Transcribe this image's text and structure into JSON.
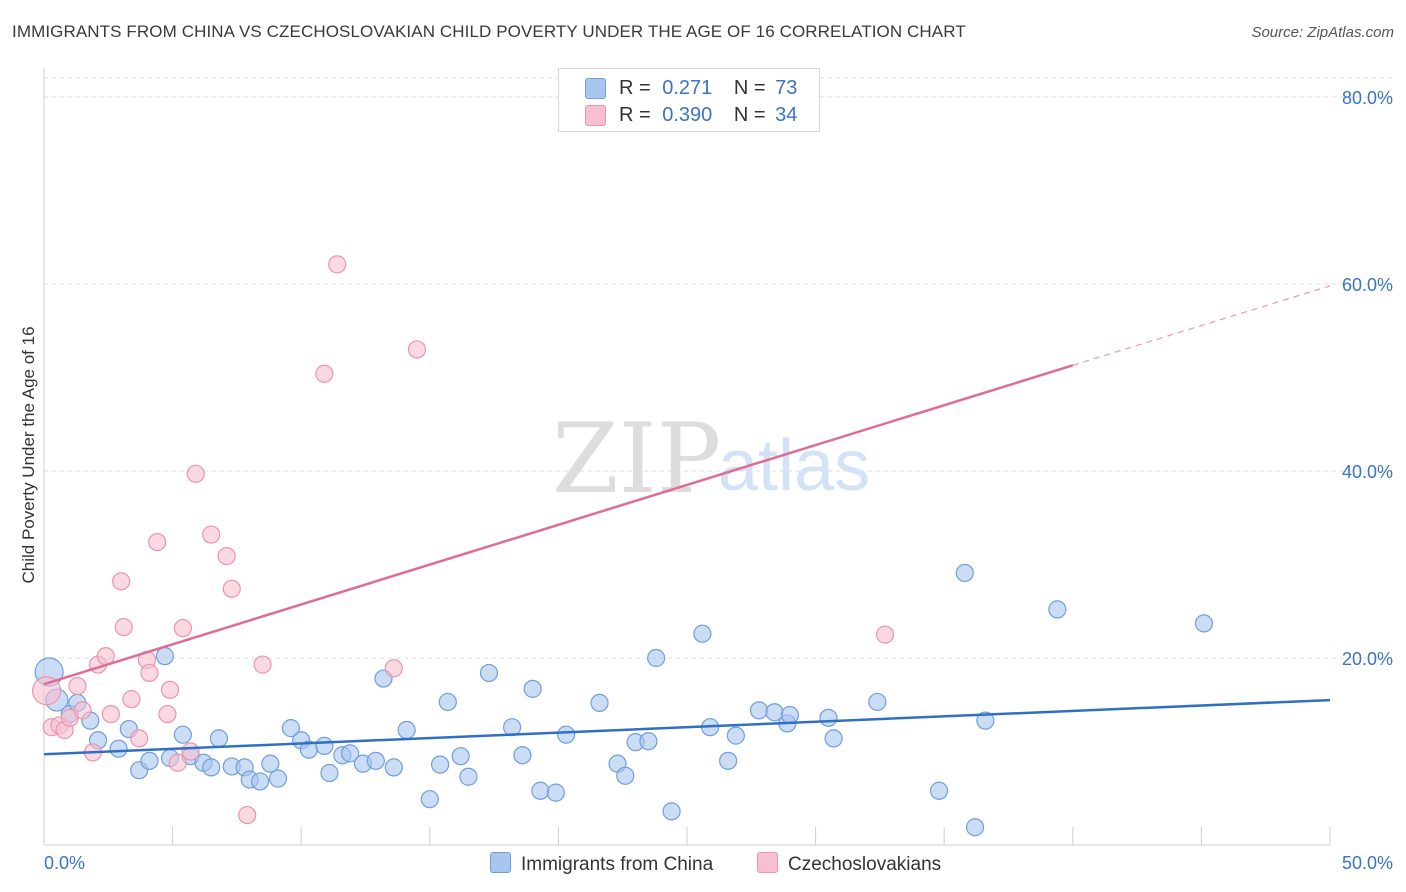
{
  "title": "IMMIGRANTS FROM CHINA VS CZECHOSLOVAKIAN CHILD POVERTY UNDER THE AGE OF 16 CORRELATION CHART",
  "source": "Source: ZipAtlas.com",
  "watermark": {
    "zip": "ZIP",
    "atlas": "atlas"
  },
  "legend": {
    "china": {
      "r_label": "R =",
      "r_value": "0.271",
      "n_label": "N =",
      "n_value": "73"
    },
    "czech": {
      "r_label": "R =",
      "r_value": "0.390",
      "n_label": "N =",
      "n_value": "34"
    }
  },
  "bottom_legend": {
    "china": "Immigrants from China",
    "czech": "Czechoslovakians"
  },
  "colors": {
    "china_fill": "#a9c6ee",
    "china_stroke": "#6f9fdc",
    "china_line": "#2f6fc6",
    "czech_fill": "#f7bfd0",
    "czech_stroke": "#ec93ae",
    "czech_line": "#e06c96",
    "tick_label": "#3a74c4",
    "grid": "#dcdcdc"
  },
  "chart_data": {
    "type": "scatter",
    "title": "IMMIGRANTS FROM CHINA VS CZECHOSLOVAKIAN CHILD POVERTY UNDER THE AGE OF 16 CORRELATION CHART",
    "xlabel": "",
    "ylabel": "Child Poverty Under the Age of 16",
    "xlim": [
      0,
      50
    ],
    "ylim": [
      0,
      80
    ],
    "x_tick_labels": [
      "0.0%",
      "50.0%"
    ],
    "y_ticks": [
      20,
      40,
      60,
      80
    ],
    "y_tick_labels": [
      "20.0%",
      "40.0%",
      "60.0%",
      "80.0%"
    ],
    "series": [
      {
        "name": "Immigrants from China",
        "r": 0.271,
        "n": 73,
        "trend": {
          "x0": 0,
          "y0": 9.7,
          "x1": 50,
          "y1": 15.5
        },
        "points": [
          {
            "x": 0.2,
            "y": 18.5,
            "s": 3
          },
          {
            "x": 0.5,
            "y": 15.5,
            "s": 2
          },
          {
            "x": 1.0,
            "y": 14.0
          },
          {
            "x": 1.3,
            "y": 15.2
          },
          {
            "x": 1.8,
            "y": 13.3
          },
          {
            "x": 2.1,
            "y": 11.2
          },
          {
            "x": 2.9,
            "y": 10.3
          },
          {
            "x": 3.3,
            "y": 12.4
          },
          {
            "x": 3.7,
            "y": 8.0
          },
          {
            "x": 4.1,
            "y": 9.0
          },
          {
            "x": 4.7,
            "y": 20.2
          },
          {
            "x": 4.9,
            "y": 9.3
          },
          {
            "x": 5.4,
            "y": 11.8
          },
          {
            "x": 5.7,
            "y": 9.5
          },
          {
            "x": 6.2,
            "y": 8.8
          },
          {
            "x": 6.5,
            "y": 8.3
          },
          {
            "x": 6.8,
            "y": 11.4
          },
          {
            "x": 7.3,
            "y": 8.4
          },
          {
            "x": 7.8,
            "y": 8.3
          },
          {
            "x": 8.0,
            "y": 7.0
          },
          {
            "x": 8.4,
            "y": 6.8
          },
          {
            "x": 8.8,
            "y": 8.7
          },
          {
            "x": 9.1,
            "y": 7.1
          },
          {
            "x": 9.6,
            "y": 12.5
          },
          {
            "x": 10.0,
            "y": 11.2
          },
          {
            "x": 10.3,
            "y": 10.2
          },
          {
            "x": 10.9,
            "y": 10.6
          },
          {
            "x": 11.1,
            "y": 7.7
          },
          {
            "x": 11.6,
            "y": 9.6
          },
          {
            "x": 11.9,
            "y": 9.8
          },
          {
            "x": 12.4,
            "y": 8.7
          },
          {
            "x": 12.9,
            "y": 9.0
          },
          {
            "x": 13.2,
            "y": 17.8
          },
          {
            "x": 13.6,
            "y": 8.3
          },
          {
            "x": 14.1,
            "y": 12.3
          },
          {
            "x": 15.0,
            "y": 4.9
          },
          {
            "x": 15.4,
            "y": 8.6
          },
          {
            "x": 15.7,
            "y": 15.3
          },
          {
            "x": 16.2,
            "y": 9.5
          },
          {
            "x": 16.5,
            "y": 7.3
          },
          {
            "x": 17.3,
            "y": 18.4
          },
          {
            "x": 18.2,
            "y": 12.6
          },
          {
            "x": 18.6,
            "y": 9.6
          },
          {
            "x": 19.3,
            "y": 5.8
          },
          {
            "x": 19.0,
            "y": 16.7
          },
          {
            "x": 19.9,
            "y": 5.6
          },
          {
            "x": 20.3,
            "y": 11.8
          },
          {
            "x": 21.6,
            "y": 15.2
          },
          {
            "x": 22.3,
            "y": 8.7
          },
          {
            "x": 22.6,
            "y": 7.4
          },
          {
            "x": 23.0,
            "y": 11.0
          },
          {
            "x": 23.5,
            "y": 11.1
          },
          {
            "x": 23.8,
            "y": 20.0
          },
          {
            "x": 24.4,
            "y": 3.6
          },
          {
            "x": 25.6,
            "y": 22.6
          },
          {
            "x": 25.9,
            "y": 12.6
          },
          {
            "x": 26.6,
            "y": 9.0
          },
          {
            "x": 26.9,
            "y": 11.7
          },
          {
            "x": 27.8,
            "y": 14.4
          },
          {
            "x": 28.4,
            "y": 14.2
          },
          {
            "x": 28.9,
            "y": 13.0
          },
          {
            "x": 29.0,
            "y": 13.9
          },
          {
            "x": 30.5,
            "y": 13.6
          },
          {
            "x": 30.7,
            "y": 11.4
          },
          {
            "x": 32.4,
            "y": 15.3
          },
          {
            "x": 34.8,
            "y": 5.8
          },
          {
            "x": 35.8,
            "y": 29.1
          },
          {
            "x": 36.2,
            "y": 1.9
          },
          {
            "x": 36.6,
            "y": 13.3
          },
          {
            "x": 39.4,
            "y": 25.2
          },
          {
            "x": 45.1,
            "y": 23.7
          }
        ]
      },
      {
        "name": "Czechoslovakians",
        "r": 0.39,
        "n": 34,
        "trend": {
          "x0": 0,
          "y0": 17.2,
          "x1": 40,
          "y1": 51.3,
          "dash_to_x": 50,
          "dash_to_y": 59.8
        },
        "points": [
          {
            "x": 0.1,
            "y": 16.5,
            "s": 3
          },
          {
            "x": 0.3,
            "y": 12.6
          },
          {
            "x": 0.6,
            "y": 12.8
          },
          {
            "x": 0.8,
            "y": 12.3
          },
          {
            "x": 1.0,
            "y": 13.6
          },
          {
            "x": 1.3,
            "y": 17.0
          },
          {
            "x": 1.5,
            "y": 14.4
          },
          {
            "x": 1.9,
            "y": 9.9
          },
          {
            "x": 2.1,
            "y": 19.3
          },
          {
            "x": 2.4,
            "y": 20.2
          },
          {
            "x": 2.6,
            "y": 14.0
          },
          {
            "x": 3.0,
            "y": 28.2
          },
          {
            "x": 3.1,
            "y": 23.3
          },
          {
            "x": 3.4,
            "y": 15.6
          },
          {
            "x": 3.7,
            "y": 11.4
          },
          {
            "x": 4.0,
            "y": 19.8
          },
          {
            "x": 4.1,
            "y": 18.4
          },
          {
            "x": 4.4,
            "y": 32.4
          },
          {
            "x": 4.8,
            "y": 14.0
          },
          {
            "x": 4.9,
            "y": 16.6
          },
          {
            "x": 5.2,
            "y": 8.8
          },
          {
            "x": 5.4,
            "y": 23.2
          },
          {
            "x": 5.7,
            "y": 10.0
          },
          {
            "x": 5.9,
            "y": 39.7
          },
          {
            "x": 6.5,
            "y": 33.2
          },
          {
            "x": 7.1,
            "y": 30.9
          },
          {
            "x": 7.3,
            "y": 27.4
          },
          {
            "x": 7.9,
            "y": 3.2
          },
          {
            "x": 8.5,
            "y": 19.3
          },
          {
            "x": 10.9,
            "y": 50.4
          },
          {
            "x": 11.4,
            "y": 62.1
          },
          {
            "x": 13.6,
            "y": 18.9
          },
          {
            "x": 14.5,
            "y": 53.0
          },
          {
            "x": 32.7,
            "y": 22.5
          }
        ]
      }
    ]
  }
}
